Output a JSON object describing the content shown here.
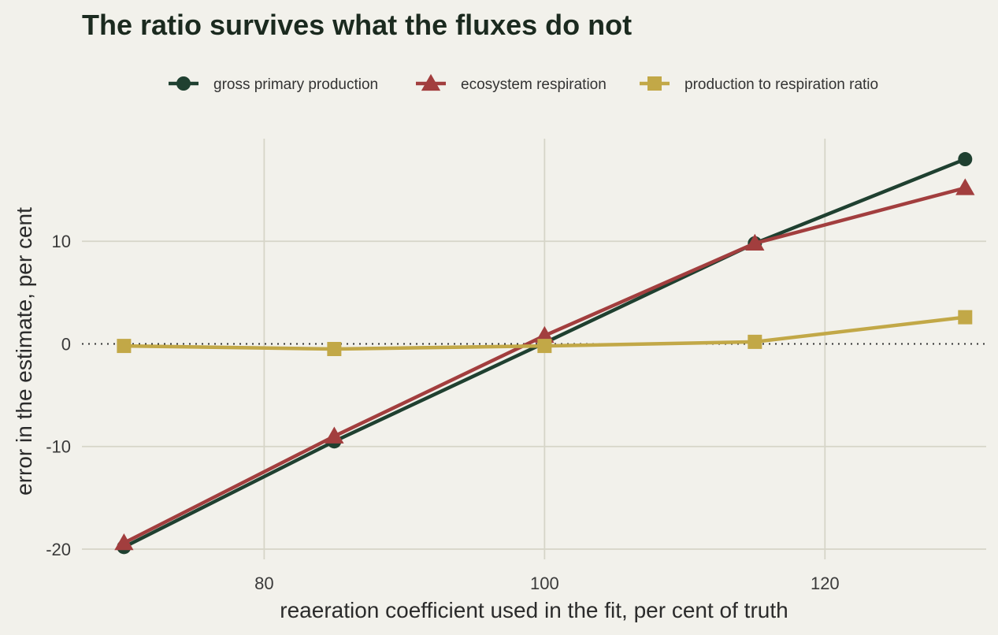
{
  "chart_data": {
    "type": "line",
    "title": "The ratio survives what the fluxes do not",
    "xlabel": "reaeration coefficient used in the fit, per cent of truth",
    "ylabel": "error in the estimate, per cent",
    "x": [
      70,
      85,
      100,
      115,
      130
    ],
    "xlim": [
      67,
      131.5
    ],
    "ylim": [
      -21,
      20
    ],
    "xticks": [
      80,
      100,
      120
    ],
    "yticks": [
      -20,
      -10,
      0,
      10
    ],
    "xtick_labels": [
      "80",
      "100",
      "120"
    ],
    "ytick_labels": [
      "-20",
      "-10",
      "0",
      "10"
    ],
    "reference_line": {
      "y": 0,
      "style": "dotted"
    },
    "grid": true,
    "legend_position": "top",
    "series": [
      {
        "name": "gross primary production",
        "color": "#1f4030",
        "marker": "circle",
        "values": [
          -19.8,
          -9.5,
          0.1,
          9.8,
          18.0
        ]
      },
      {
        "name": "ecosystem respiration",
        "color": "#a23e3e",
        "marker": "triangle",
        "values": [
          -19.4,
          -9.0,
          0.8,
          9.8,
          15.2
        ]
      },
      {
        "name": "production to respiration ratio",
        "color": "#c2a847",
        "marker": "square",
        "values": [
          -0.2,
          -0.5,
          -0.2,
          0.2,
          2.6
        ]
      }
    ]
  }
}
